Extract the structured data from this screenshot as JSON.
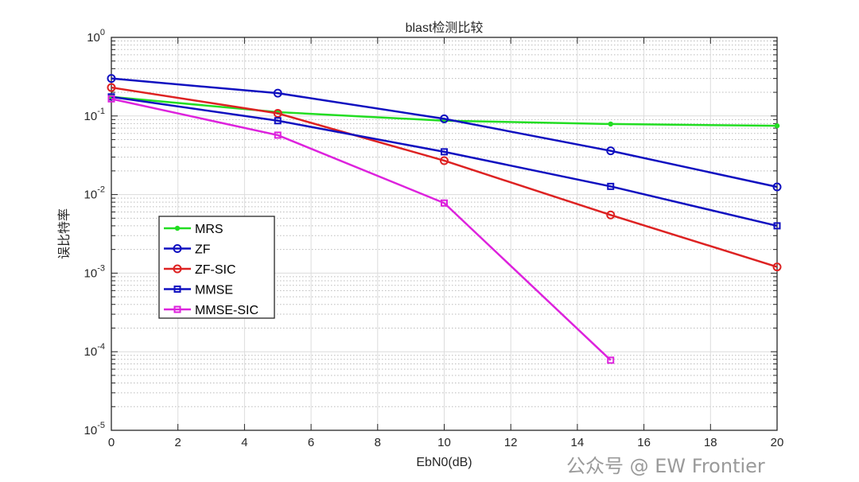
{
  "chart_data": {
    "type": "line",
    "title": "blast检测比较",
    "xlabel": "EbN0(dB)",
    "ylabel": "误比特率",
    "xlim": [
      0,
      20
    ],
    "ylim": [
      1e-05,
      1
    ],
    "yscale": "log",
    "grid": true,
    "minor_grid": true,
    "legend_position": "lower-left",
    "x_ticks": [
      "0",
      "2",
      "4",
      "6",
      "8",
      "10",
      "12",
      "14",
      "16",
      "18",
      "20"
    ],
    "y_ticks": [
      {
        "base": "10",
        "exp": "0"
      },
      {
        "base": "10",
        "exp": "-1"
      },
      {
        "base": "10",
        "exp": "-2"
      },
      {
        "base": "10",
        "exp": "-3"
      },
      {
        "base": "10",
        "exp": "-4"
      },
      {
        "base": "10",
        "exp": "-5"
      }
    ],
    "x": [
      0,
      5,
      10,
      15,
      20
    ],
    "series": [
      {
        "name": "MRS",
        "color": "#22dd22",
        "marker": "dot",
        "values": [
          0.175,
          0.112,
          0.087,
          0.079,
          0.075
        ]
      },
      {
        "name": "ZF",
        "color": "#1010c0",
        "marker": "circle",
        "values": [
          0.3,
          0.195,
          0.092,
          0.036,
          0.0125
        ]
      },
      {
        "name": "ZF-SIC",
        "color": "#dd2222",
        "marker": "circle",
        "values": [
          0.23,
          0.108,
          0.027,
          0.0055,
          0.0012
        ]
      },
      {
        "name": "MMSE",
        "color": "#1010c0",
        "marker": "square",
        "values": [
          0.175,
          0.087,
          0.035,
          0.0127,
          0.004
        ]
      },
      {
        "name": "MMSE-SIC",
        "color": "#dd22dd",
        "marker": "square",
        "values": [
          0.165,
          0.057,
          0.0078,
          7.8e-05,
          null
        ]
      }
    ]
  },
  "watermark": "公众号 @ EW Frontier"
}
